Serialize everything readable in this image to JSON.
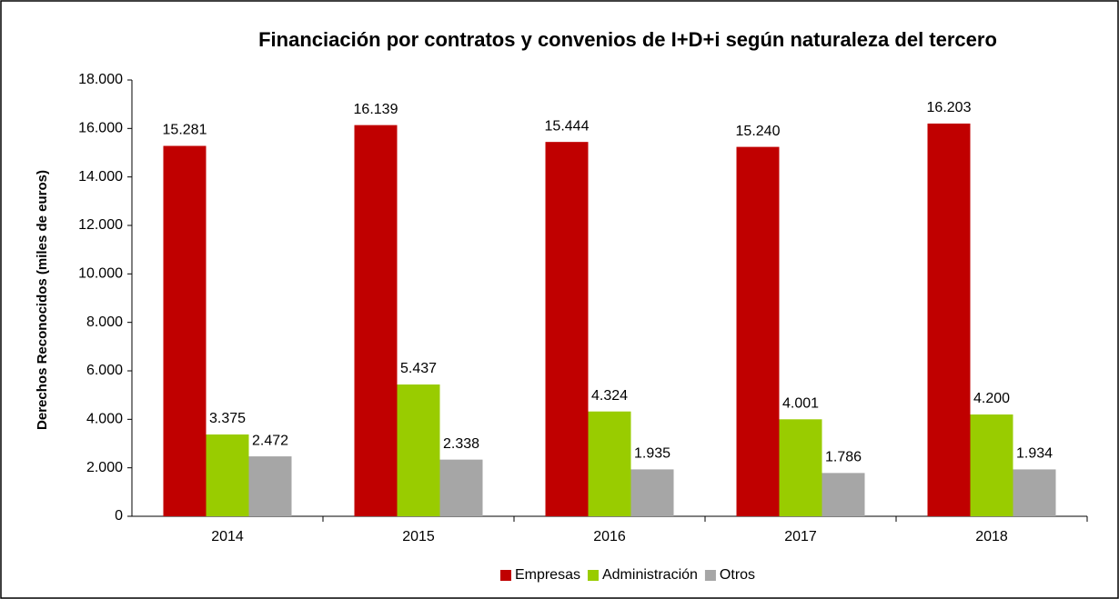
{
  "chart_data": {
    "type": "bar",
    "title": "Financiación por contratos y convenios de I+D+i según naturaleza del tercero",
    "y_label": "Derechos  Reconocidos  (miles de euros)",
    "categories": [
      "2014",
      "2015",
      "2016",
      "2017",
      "2018"
    ],
    "series": [
      {
        "name": "Empresas",
        "color": "#c00000",
        "values": [
          15281,
          16139,
          15444,
          15240,
          16203
        ],
        "value_labels": [
          "15.281",
          "16.139",
          "15.444",
          "15.240",
          "16.203"
        ]
      },
      {
        "name": "Administración",
        "color": "#99cc00",
        "values": [
          3375,
          5437,
          4324,
          4001,
          4200
        ],
        "value_labels": [
          "3.375",
          "5.437",
          "4.324",
          "4.001",
          "4.200"
        ]
      },
      {
        "name": "Otros",
        "color": "#a6a6a6",
        "values": [
          2472,
          2338,
          1935,
          1786,
          1934
        ],
        "value_labels": [
          "2.472",
          "2.338",
          "1.935",
          "1.786",
          "1.934"
        ]
      }
    ],
    "ylim": [
      0,
      18000
    ],
    "yticks": [
      0,
      {
        "value": 2000,
        "label": "2.000"
      },
      {
        "value": 4000,
        "label": "4.000"
      },
      {
        "value": 6000,
        "label": "6.000"
      },
      {
        "value": 8000,
        "label": "8.000"
      },
      {
        "value": 10000,
        "label": "10.000"
      },
      {
        "value": 12000,
        "label": "12.000"
      },
      {
        "value": 14000,
        "label": "14.000"
      },
      {
        "value": 16000,
        "label": "16.000"
      },
      {
        "value": 18000,
        "label": "18.000"
      }
    ],
    "grid": false,
    "legend": "bottom"
  }
}
